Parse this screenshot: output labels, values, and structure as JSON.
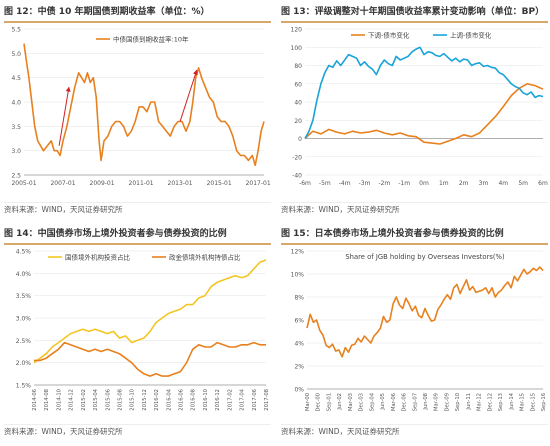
{
  "panels": [
    {
      "figure_label": "图 12：",
      "title": "中债 10 年期国债到期收益率（单位：%）",
      "source": "资料来源：WIND，天风证券研究所"
    },
    {
      "figure_label": "图 13：",
      "title": "评级调整对十年期国债收益率累计变动影响（单位：BP）",
      "source": "资料来源：WIND，天风证券研究所"
    },
    {
      "figure_label": "图 14：",
      "title": "中国债券市场上境外投资者参与债券投资的比例",
      "source": "资料来源：WIND，天风证券研究所"
    },
    {
      "figure_label": "图 15：",
      "title": "日本债券市场上境外投资者参与债券投资的比例",
      "source": "资料来源：WIND，天风证券研究所"
    }
  ],
  "chart_data": [
    {
      "type": "line",
      "title": "",
      "ylim": [
        2.5,
        5.5
      ],
      "yticks": [
        "2.5",
        "3.0",
        "3.5",
        "4.0",
        "4.5",
        "5.0",
        "5.5"
      ],
      "xticks": [
        "2005-01",
        "2007-01",
        "2009-01",
        "2011-01",
        "2013-01",
        "2015-01",
        "2017-01"
      ],
      "legend_position": "top",
      "colors": {
        "line": "#e8801e",
        "annotation": "#d02020"
      },
      "series": [
        {
          "name": "中债国债到期收益率:10年",
          "x": [
            2005.0,
            2005.1,
            2005.25,
            2005.4,
            2005.55,
            2005.7,
            2005.85,
            2006.0,
            2006.2,
            2006.4,
            2006.55,
            2006.7,
            2006.85,
            2007.0,
            2007.2,
            2007.4,
            2007.6,
            2007.8,
            2007.95,
            2008.1,
            2008.25,
            2008.4,
            2008.55,
            2008.7,
            2008.85,
            2008.95,
            2009.1,
            2009.3,
            2009.5,
            2009.7,
            2009.9,
            2010.1,
            2010.3,
            2010.5,
            2010.7,
            2010.9,
            2011.1,
            2011.3,
            2011.5,
            2011.7,
            2011.9,
            2012.1,
            2012.3,
            2012.5,
            2012.7,
            2012.9,
            2013.1,
            2013.3,
            2013.5,
            2013.65,
            2013.8,
            2013.95,
            2014.1,
            2014.3,
            2014.5,
            2014.7,
            2014.9,
            2015.1,
            2015.3,
            2015.5,
            2015.7,
            2015.9,
            2016.1,
            2016.3,
            2016.5,
            2016.7,
            2016.85,
            2017.0,
            2017.15,
            2017.3
          ],
          "y": [
            5.2,
            4.9,
            4.5,
            4.0,
            3.5,
            3.2,
            3.1,
            3.0,
            3.1,
            3.2,
            3.0,
            3.0,
            2.9,
            3.2,
            3.5,
            3.9,
            4.3,
            4.6,
            4.5,
            4.4,
            4.6,
            4.4,
            4.5,
            4.1,
            3.2,
            2.8,
            3.2,
            3.3,
            3.5,
            3.6,
            3.6,
            3.5,
            3.3,
            3.4,
            3.6,
            3.9,
            3.9,
            3.8,
            4.0,
            4.0,
            3.6,
            3.5,
            3.4,
            3.3,
            3.5,
            3.6,
            3.6,
            3.4,
            3.6,
            4.0,
            4.5,
            4.7,
            4.5,
            4.3,
            4.1,
            4.0,
            3.7,
            3.6,
            3.6,
            3.5,
            3.3,
            3.0,
            2.9,
            2.9,
            2.8,
            2.9,
            2.7,
            3.0,
            3.4,
            3.6
          ]
        }
      ]
    },
    {
      "type": "line",
      "title": "",
      "ylim": [
        -40,
        120
      ],
      "yticks": [
        "-40",
        "-20",
        "0",
        "20",
        "40",
        "60",
        "80",
        "100",
        "120"
      ],
      "xticks": [
        "-6m",
        "-5m",
        "-4m",
        "-3m",
        "-2m",
        "-1m",
        "0m",
        "1m",
        "2m",
        "3m",
        "4m",
        "5m",
        "6m"
      ],
      "legend_position": "top",
      "colors": {
        "down": "#e8801e",
        "up": "#1aa3d8"
      },
      "series": [
        {
          "name": "下调-债市变化",
          "x": [
            -6,
            -5.6,
            -5.2,
            -4.8,
            -4.4,
            -4,
            -3.6,
            -3.2,
            -2.8,
            -2.4,
            -2,
            -1.6,
            -1.2,
            -0.8,
            -0.4,
            0,
            0.4,
            0.8,
            1.2,
            1.6,
            2,
            2.4,
            2.8,
            3.2,
            3.6,
            4,
            4.4,
            4.8,
            5.2,
            5.6,
            6
          ],
          "y": [
            0,
            8,
            5,
            10,
            7,
            5,
            8,
            6,
            7,
            9,
            6,
            4,
            6,
            3,
            2,
            -4,
            -5,
            -6,
            -3,
            0,
            4,
            2,
            6,
            15,
            24,
            35,
            47,
            55,
            60,
            58,
            54
          ]
        },
        {
          "name": "上调-债市变化",
          "x": [
            -6,
            -5.8,
            -5.6,
            -5.4,
            -5.2,
            -5,
            -4.8,
            -4.6,
            -4.4,
            -4.2,
            -4,
            -3.8,
            -3.6,
            -3.4,
            -3.2,
            -3,
            -2.8,
            -2.6,
            -2.4,
            -2.2,
            -2,
            -1.8,
            -1.6,
            -1.4,
            -1.2,
            -1,
            -0.8,
            -0.6,
            -0.4,
            -0.2,
            0,
            0.2,
            0.4,
            0.6,
            0.8,
            1,
            1.2,
            1.4,
            1.6,
            1.8,
            2,
            2.2,
            2.4,
            2.6,
            2.8,
            3,
            3.2,
            3.4,
            3.6,
            3.8,
            4,
            4.2,
            4.4,
            4.6,
            4.8,
            5,
            5.2,
            5.4,
            5.6,
            5.8,
            6
          ],
          "y": [
            0,
            8,
            20,
            42,
            60,
            72,
            80,
            78,
            85,
            80,
            86,
            92,
            90,
            88,
            80,
            84,
            79,
            76,
            70,
            80,
            86,
            82,
            80,
            90,
            86,
            88,
            90,
            95,
            98,
            100,
            92,
            95,
            94,
            91,
            90,
            93,
            89,
            85,
            88,
            84,
            87,
            86,
            80,
            82,
            83,
            79,
            80,
            78,
            77,
            72,
            70,
            65,
            60,
            57,
            55,
            50,
            48,
            51,
            45,
            47,
            46
          ]
        }
      ]
    },
    {
      "type": "line",
      "title": "",
      "ylim": [
        1.5,
        4.5
      ],
      "yticks": [
        "1.5%",
        "2.0%",
        "2.5%",
        "3.0%",
        "3.5%",
        "4.0%",
        "4.5%"
      ],
      "xticks": [
        "2014-06",
        "2014-08",
        "2014-10",
        "2014-12",
        "2015-02",
        "2015-04",
        "2015-06",
        "2015-08",
        "2015-10",
        "2015-12",
        "2016-02",
        "2016-04",
        "2016-06",
        "2016-08",
        "2016-10",
        "2016-12",
        "2017-02",
        "2017-04",
        "2017-06",
        "2017-08"
      ],
      "legend_position": "top",
      "colors": {
        "left": "#f3c623",
        "right": "#e8801e"
      },
      "series": [
        {
          "name": "国债境外机构投资占比",
          "x": [
            0,
            0.5,
            1,
            1.5,
            2,
            2.5,
            3,
            3.5,
            4,
            4.5,
            5,
            5.5,
            6,
            6.5,
            7,
            7.5,
            8,
            8.5,
            9,
            9.5,
            10,
            10.5,
            11,
            11.5,
            12,
            12.5,
            13,
            13.5,
            14,
            14.5,
            15,
            15.5,
            16,
            16.5,
            17,
            17.5,
            18,
            18.5,
            19
          ],
          "y": [
            2.0,
            2.1,
            2.2,
            2.35,
            2.45,
            2.55,
            2.65,
            2.7,
            2.75,
            2.7,
            2.75,
            2.7,
            2.65,
            2.7,
            2.55,
            2.6,
            2.45,
            2.5,
            2.55,
            2.7,
            2.9,
            3.0,
            3.1,
            3.15,
            3.2,
            3.3,
            3.3,
            3.45,
            3.5,
            3.7,
            3.8,
            3.85,
            3.9,
            3.95,
            3.9,
            3.95,
            4.1,
            4.25,
            4.3
          ]
        },
        {
          "name": "政金债境外机构持债占比",
          "x": [
            0,
            0.5,
            1,
            1.5,
            2,
            2.5,
            3,
            3.5,
            4,
            4.5,
            5,
            5.5,
            6,
            6.5,
            7,
            7.5,
            8,
            8.5,
            9,
            9.5,
            10,
            10.5,
            11,
            11.5,
            12,
            12.5,
            13,
            13.5,
            14,
            14.5,
            15,
            15.5,
            16,
            16.5,
            17,
            17.5,
            18,
            18.5,
            19
          ],
          "y": [
            2.05,
            2.05,
            2.1,
            2.2,
            2.3,
            2.45,
            2.4,
            2.35,
            2.3,
            2.25,
            2.3,
            2.25,
            2.3,
            2.25,
            2.2,
            2.1,
            2.0,
            1.85,
            1.75,
            1.7,
            1.75,
            1.7,
            1.7,
            1.75,
            1.8,
            2.0,
            2.3,
            2.4,
            2.35,
            2.35,
            2.45,
            2.4,
            2.35,
            2.35,
            2.4,
            2.4,
            2.45,
            2.4,
            2.4
          ]
        }
      ]
    },
    {
      "type": "line",
      "title": "Share of JGB holding by Overseas Investors(%)",
      "ylim": [
        0,
        12
      ],
      "yticks": [
        "0%",
        "2%",
        "4%",
        "6%",
        "8%",
        "10%",
        "12%"
      ],
      "xticks": [
        "Mar-00",
        "Dec-00",
        "Sep-01",
        "Jun-02",
        "Mar-03",
        "Dec-03",
        "Sep-04",
        "Jun-05",
        "Mar-06",
        "Dec-06",
        "Sep-07",
        "Jun-08",
        "Mar-09",
        "Dec-09",
        "Sep-10",
        "Jun-11",
        "Mar-12",
        "Dec-12",
        "Sep-13",
        "Jun-14",
        "Mar-15",
        "Dec-15",
        "Sep-16"
      ],
      "legend_position": "top",
      "colors": {
        "line": "#e8801e"
      },
      "series": [
        {
          "name": "",
          "x": [
            0,
            0.3,
            0.6,
            0.9,
            1.2,
            1.5,
            1.8,
            2.1,
            2.4,
            2.7,
            3.0,
            3.3,
            3.6,
            3.9,
            4.2,
            4.5,
            4.8,
            5.1,
            5.4,
            5.7,
            6.0,
            6.3,
            6.6,
            6.9,
            7.2,
            7.5,
            7.8,
            8.1,
            8.4,
            8.7,
            9.0,
            9.3,
            9.6,
            9.9,
            10.2,
            10.5,
            10.8,
            11.1,
            11.4,
            11.7,
            12.0,
            12.3,
            12.6,
            12.9,
            13.2,
            13.5,
            13.8,
            14.1,
            14.4,
            14.7,
            15.0,
            15.3,
            15.6,
            15.9,
            16.2,
            16.5,
            16.8,
            17.1,
            17.4,
            17.7,
            18.0,
            18.3,
            18.6,
            18.9,
            19.2,
            19.5,
            19.8,
            20.1,
            20.4,
            20.7,
            21.0,
            21.3,
            21.6,
            21.9,
            22.2
          ],
          "y": [
            5.3,
            6.5,
            5.8,
            6.0,
            5.1,
            4.7,
            3.8,
            3.6,
            3.9,
            3.3,
            3.4,
            2.8,
            3.6,
            3.2,
            3.8,
            3.9,
            4.4,
            4.1,
            4.6,
            4.3,
            4.0,
            4.6,
            4.9,
            5.3,
            6.3,
            5.8,
            6.0,
            7.4,
            8.0,
            7.3,
            7.0,
            7.9,
            7.4,
            6.8,
            7.2,
            6.4,
            6.2,
            7.0,
            6.4,
            5.9,
            6.0,
            6.9,
            7.3,
            7.8,
            8.2,
            7.8,
            8.8,
            9.1,
            8.3,
            8.9,
            9.5,
            8.6,
            8.9,
            8.4,
            8.5,
            8.6,
            8.8,
            8.3,
            8.8,
            8.0,
            8.4,
            8.6,
            9.0,
            9.3,
            8.8,
            9.8,
            9.4,
            9.9,
            10.4,
            10.0,
            10.2,
            10.5,
            10.3,
            10.6,
            10.3
          ]
        }
      ]
    }
  ]
}
